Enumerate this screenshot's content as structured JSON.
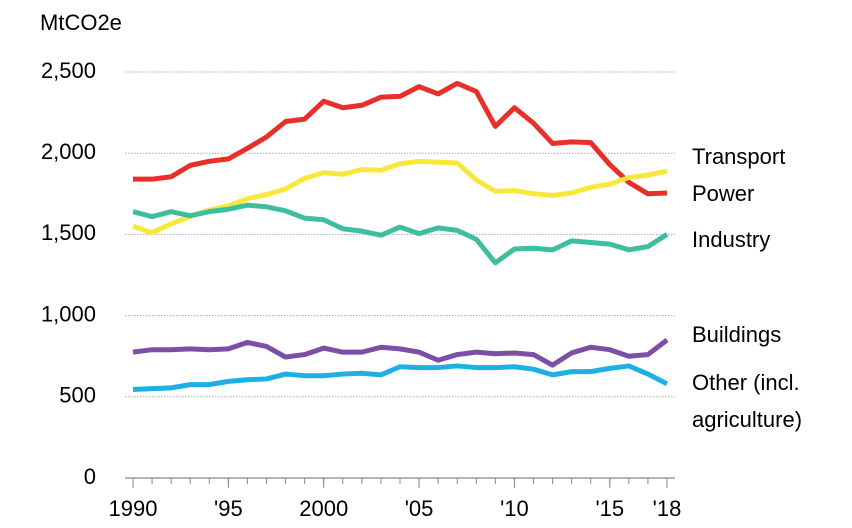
{
  "chart_data": {
    "type": "line",
    "y_label": "MtCO2e",
    "x": [
      1990,
      1991,
      1992,
      1993,
      1994,
      1995,
      1996,
      1997,
      1998,
      1999,
      2000,
      2001,
      2002,
      2003,
      2004,
      2005,
      2006,
      2007,
      2008,
      2009,
      2010,
      2011,
      2012,
      2013,
      2014,
      2015,
      2016,
      2017,
      2018
    ],
    "series": [
      {
        "name": "Transport",
        "color": "#e8302a",
        "values": [
          1840,
          1840,
          1855,
          1925,
          1950,
          1965,
          2030,
          2100,
          2195,
          2210,
          2320,
          2280,
          2295,
          2345,
          2350,
          2410,
          2365,
          2430,
          2380,
          2165,
          2280,
          2185,
          2060,
          2070,
          2065,
          1930,
          1820,
          1750,
          1755
        ]
      },
      {
        "name": "Power",
        "color": "#f9e83c",
        "values": [
          1550,
          1510,
          1565,
          1610,
          1650,
          1675,
          1720,
          1745,
          1780,
          1845,
          1880,
          1870,
          1900,
          1895,
          1935,
          1950,
          1945,
          1940,
          1835,
          1765,
          1770,
          1750,
          1740,
          1755,
          1790,
          1810,
          1850,
          1865,
          1890
        ]
      },
      {
        "name": "Industry",
        "color": "#3dbf9f",
        "values": [
          1640,
          1610,
          1640,
          1615,
          1640,
          1655,
          1680,
          1670,
          1645,
          1600,
          1590,
          1535,
          1520,
          1495,
          1545,
          1505,
          1540,
          1525,
          1470,
          1325,
          1410,
          1415,
          1405,
          1460,
          1450,
          1440,
          1405,
          1425,
          1500
        ]
      },
      {
        "name": "Buildings",
        "color": "#7b4fa5",
        "values": [
          775,
          790,
          790,
          795,
          790,
          795,
          835,
          810,
          745,
          760,
          800,
          775,
          775,
          805,
          795,
          775,
          725,
          760,
          775,
          765,
          770,
          760,
          695,
          770,
          805,
          790,
          750,
          760,
          850
        ]
      },
      {
        "name": "Other (incl. agriculture)",
        "color": "#1eb0e2",
        "values": [
          545,
          550,
          555,
          575,
          575,
          595,
          605,
          610,
          640,
          630,
          630,
          640,
          645,
          635,
          685,
          680,
          680,
          690,
          680,
          680,
          685,
          670,
          635,
          655,
          655,
          675,
          690,
          640,
          580
        ]
      }
    ],
    "xlim": [
      1990,
      2018
    ],
    "xticks": [
      1990,
      {
        "value": 1995,
        "label": "'95"
      },
      2000,
      {
        "value": 2005,
        "label": "'05"
      },
      {
        "value": 2010,
        "label": "'10"
      },
      {
        "value": 2015,
        "label": "'15"
      },
      {
        "value": 2018,
        "label": "'18"
      }
    ],
    "ylim": [
      0,
      2500
    ],
    "yticks": [
      0,
      500,
      {
        "value": 1000,
        "label": "1,000"
      },
      {
        "value": 1500,
        "label": "1,500"
      },
      {
        "value": 2000,
        "label": "2,000"
      },
      {
        "value": 2500,
        "label": "2,500"
      }
    ],
    "grid": true
  }
}
